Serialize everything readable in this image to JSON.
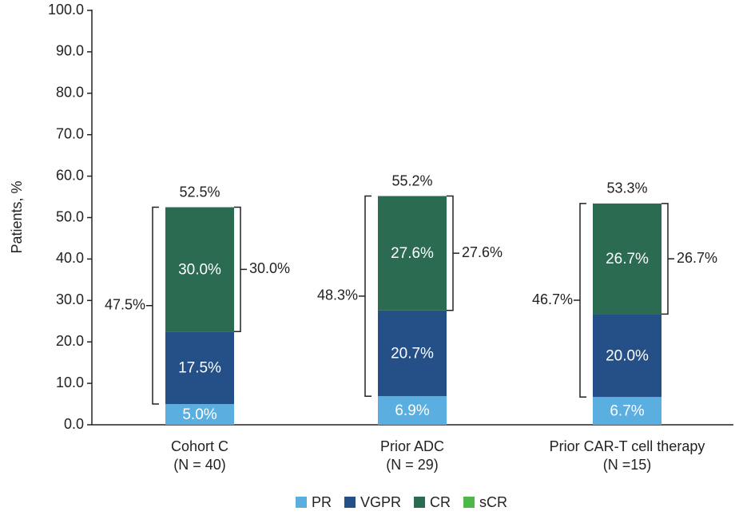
{
  "chart_data": {
    "type": "stacked_bar",
    "y_label": "Patients, %",
    "categories": [
      [
        "Cohort C",
        "(N = 40)"
      ],
      [
        "Prior ADC",
        "(N = 29)"
      ],
      [
        "Prior CAR-T cell therapy",
        "(N =15)"
      ]
    ],
    "series": [
      {
        "name": "PR",
        "color": "#5aaee0",
        "values": [
          5.0,
          6.9,
          6.7
        ],
        "value_labels": [
          "5.0%",
          "6.9%",
          "6.7%"
        ]
      },
      {
        "name": "VGPR",
        "color": "#244f87",
        "values": [
          17.5,
          20.7,
          20.0
        ],
        "value_labels": [
          "17.5%",
          "20.7%",
          "20.0%"
        ]
      },
      {
        "name": "CR",
        "color": "#2a6b52",
        "values": [
          30.0,
          27.6,
          26.7
        ],
        "value_labels": [
          "30.0%",
          "27.6%",
          "26.7%"
        ]
      },
      {
        "name": "sCR",
        "color": "#4db848",
        "values": [
          0,
          0,
          0
        ]
      }
    ],
    "total_labels": [
      "52.5%",
      "55.2%",
      "53.3%"
    ],
    "vgpr_cr_labels": [
      "47.5%",
      "48.3%",
      "46.7%"
    ],
    "cr_labels": [
      "30.0%",
      "27.6%",
      "26.7%"
    ],
    "ylim": [
      0,
      100
    ],
    "yticks": [
      {
        "value": 0,
        "label": "0.0"
      },
      {
        "value": 10,
        "label": "10.0"
      },
      {
        "value": 20,
        "label": "20.0"
      },
      {
        "value": 30,
        "label": "30.0"
      },
      {
        "value": 40,
        "label": "40.0"
      },
      {
        "value": 50,
        "label": "50.0"
      },
      {
        "value": 60,
        "label": "60.0"
      },
      {
        "value": 70,
        "label": "70.0"
      },
      {
        "value": 80,
        "label": "80.0"
      },
      {
        "value": 90,
        "label": "90.0"
      },
      {
        "value": 100,
        "label": "100.0"
      }
    ],
    "grid": false
  }
}
